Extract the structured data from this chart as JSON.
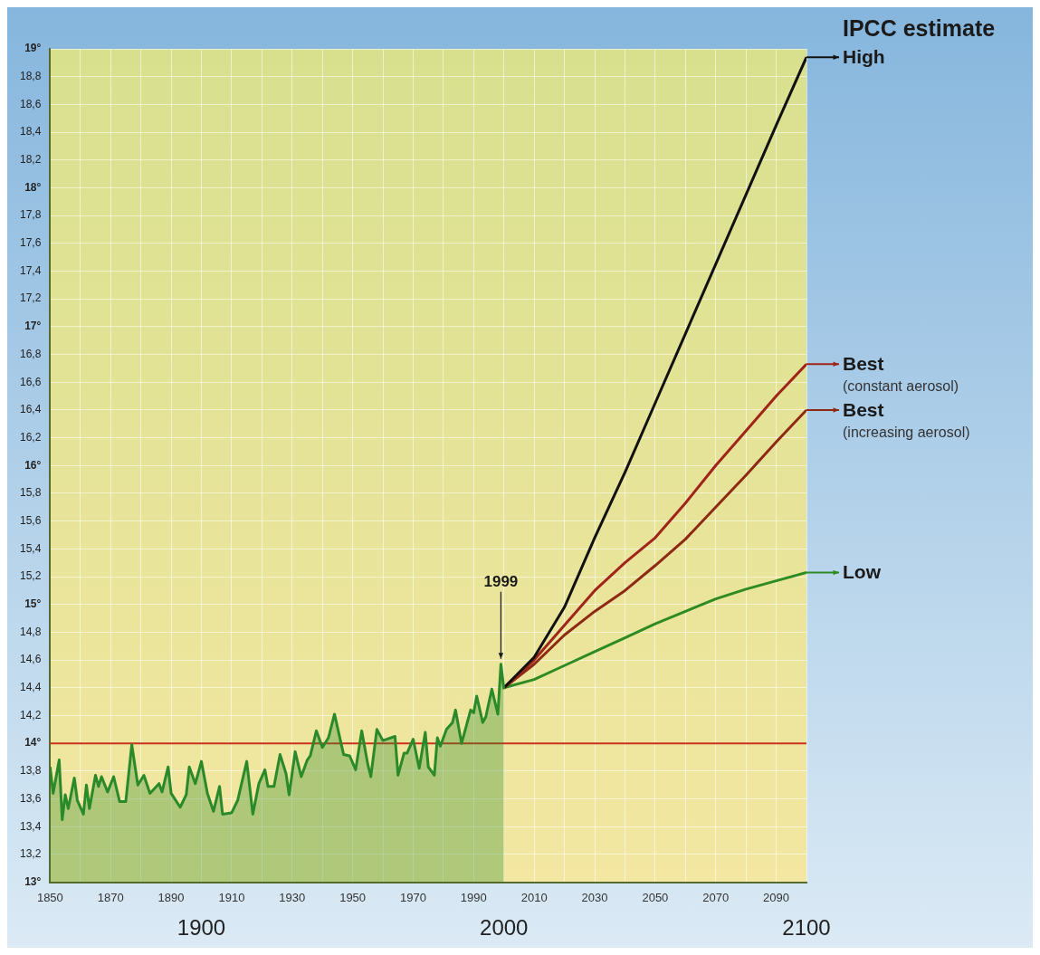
{
  "chart_data": {
    "type": "line",
    "legend_title": "IPCC estimate",
    "legend": "right",
    "grid": true,
    "xlim": [
      1850,
      2100
    ],
    "xticks": [
      1850,
      {
        "value": 1860,
        "label": null
      },
      1870,
      {
        "value": 1880,
        "label": null
      },
      1890,
      {
        "value": 1900,
        "label": null
      },
      1910,
      {
        "value": 1920,
        "label": null
      },
      1930,
      {
        "value": 1940,
        "label": null
      },
      1950,
      {
        "value": 1960,
        "label": null
      },
      1970,
      {
        "value": 1980,
        "label": null
      },
      1990,
      {
        "value": 2000,
        "label": null
      },
      2010,
      {
        "value": 2020,
        "label": null
      },
      2030,
      {
        "value": 2040,
        "label": null
      },
      2050,
      {
        "value": 2060,
        "label": null
      },
      2070,
      {
        "value": 2080,
        "label": null
      },
      2090,
      {
        "value": 2100,
        "label": null
      }
    ],
    "x2lim": [
      1850,
      2100
    ],
    "x2ticks": [
      1900,
      2000,
      2100
    ],
    "ylim": [
      13,
      19
    ],
    "yticks": [
      {
        "value": 13,
        "label": "13°"
      },
      {
        "value": 13.2,
        "label": "13,2"
      },
      {
        "value": 13.4,
        "label": "13,4"
      },
      {
        "value": 13.6,
        "label": "13,6"
      },
      {
        "value": 13.8,
        "label": "13,8"
      },
      {
        "value": 14,
        "label": "14°"
      },
      {
        "value": 14.2,
        "label": "14,2"
      },
      {
        "value": 14.4,
        "label": "14,4"
      },
      {
        "value": 14.6,
        "label": "14,6"
      },
      {
        "value": 14.8,
        "label": "14,8"
      },
      {
        "value": 15,
        "label": "15°"
      },
      {
        "value": 15.2,
        "label": "15,2"
      },
      {
        "value": 15.4,
        "label": "15,4"
      },
      {
        "value": 15.6,
        "label": "15,6"
      },
      {
        "value": 15.8,
        "label": "15,8"
      },
      {
        "value": 16,
        "label": "16°"
      },
      {
        "value": 16.2,
        "label": "16,2"
      },
      {
        "value": 16.4,
        "label": "16,4"
      },
      {
        "value": 16.6,
        "label": "16,6"
      },
      {
        "value": 16.8,
        "label": "16,8"
      },
      {
        "value": 17,
        "label": "17°"
      },
      {
        "value": 17.2,
        "label": "17,2"
      },
      {
        "value": 17.4,
        "label": "17,4"
      },
      {
        "value": 17.6,
        "label": "17,6"
      },
      {
        "value": 17.8,
        "label": "17,8"
      },
      {
        "value": 18,
        "label": "18°"
      },
      {
        "value": 18.2,
        "label": "18,2"
      },
      {
        "value": 18.4,
        "label": "18,4"
      },
      {
        "value": 18.6,
        "label": "18,6"
      },
      {
        "value": 18.8,
        "label": "18,8"
      },
      {
        "value": 19,
        "label": "19°"
      }
    ],
    "ref_lines": [
      {
        "axis": "y",
        "value": 14,
        "color": "#c8321e"
      }
    ],
    "annotations": [
      {
        "text": "1999",
        "x": 1999,
        "y": 14.57
      }
    ],
    "series": [
      {
        "type": "area",
        "color": "#2a8a2a",
        "x": [
          1850,
          1851,
          1853,
          1854,
          1855,
          1856,
          1858,
          1859,
          1861,
          1862,
          1863,
          1865,
          1866,
          1867,
          1869,
          1871,
          1873,
          1875,
          1877,
          1879,
          1881,
          1883,
          1886,
          1887,
          1889,
          1890,
          1893,
          1895,
          1896,
          1898,
          1900,
          1902,
          1904,
          1906,
          1907,
          1910,
          1912,
          1915,
          1917,
          1919,
          1921,
          1922,
          1924,
          1926,
          1928,
          1929,
          1931,
          1933,
          1935,
          1936,
          1938,
          1940,
          1942,
          1944,
          1947,
          1949,
          1951,
          1953,
          1955,
          1956,
          1958,
          1960,
          1964,
          1965,
          1967,
          1968,
          1970,
          1972,
          1974,
          1975,
          1977,
          1978,
          1979,
          1981,
          1983,
          1984,
          1986,
          1987,
          1989,
          1990,
          1991,
          1993,
          1994,
          1996,
          1998,
          1999,
          2000
        ],
        "values": [
          13.83,
          13.64,
          13.88,
          13.45,
          13.63,
          13.53,
          13.75,
          13.59,
          13.49,
          13.7,
          13.53,
          13.77,
          13.69,
          13.76,
          13.65,
          13.76,
          13.58,
          13.58,
          13.99,
          13.7,
          13.77,
          13.64,
          13.71,
          13.65,
          13.83,
          13.64,
          13.54,
          13.63,
          13.83,
          13.71,
          13.87,
          13.64,
          13.51,
          13.69,
          13.49,
          13.5,
          13.59,
          13.87,
          13.49,
          13.71,
          13.81,
          13.69,
          13.69,
          13.92,
          13.78,
          13.63,
          13.94,
          13.76,
          13.88,
          13.91,
          14.09,
          13.97,
          14.04,
          14.21,
          13.92,
          13.91,
          13.81,
          14.09,
          13.85,
          13.76,
          14.1,
          14.02,
          14.05,
          13.77,
          13.93,
          13.93,
          14.03,
          13.82,
          14.08,
          13.83,
          13.77,
          14.04,
          13.98,
          14.1,
          14.15,
          14.24,
          14,
          14.08,
          14.24,
          14.22,
          14.34,
          14.15,
          14.19,
          14.39,
          14.21,
          14.57,
          14.39
        ]
      },
      {
        "name": "High",
        "color": "#111111",
        "x": [
          2000,
          2010,
          2020,
          2030,
          2040,
          2050,
          2060,
          2070,
          2080,
          2090,
          2100
        ],
        "values": [
          14.4,
          14.62,
          14.98,
          15.48,
          15.95,
          16.45,
          16.95,
          17.45,
          17.95,
          18.45,
          18.94
        ]
      },
      {
        "name": "Best (constant aerosol)",
        "color": "#a0241a",
        "x": [
          2000,
          2010,
          2020,
          2030,
          2040,
          2050,
          2060,
          2070,
          2080,
          2090,
          2100
        ],
        "values": [
          14.4,
          14.6,
          14.85,
          15.1,
          15.3,
          15.48,
          15.73,
          16,
          16.25,
          16.5,
          16.73
        ]
      },
      {
        "name": "Best (increasing aerosol)",
        "color": "#8e2a14",
        "x": [
          2000,
          2010,
          2020,
          2030,
          2040,
          2050,
          2060,
          2070,
          2080,
          2090,
          2100
        ],
        "values": [
          14.4,
          14.57,
          14.78,
          14.95,
          15.1,
          15.28,
          15.47,
          15.7,
          15.93,
          16.17,
          16.4
        ]
      },
      {
        "name": "Low",
        "color": "#2e8a22",
        "x": [
          2000,
          2010,
          2020,
          2030,
          2040,
          2050,
          2060,
          2070,
          2080,
          2090,
          2100
        ],
        "values": [
          14.4,
          14.46,
          14.56,
          14.66,
          14.76,
          14.86,
          14.95,
          15.04,
          15.11,
          15.17,
          15.23
        ]
      }
    ]
  }
}
